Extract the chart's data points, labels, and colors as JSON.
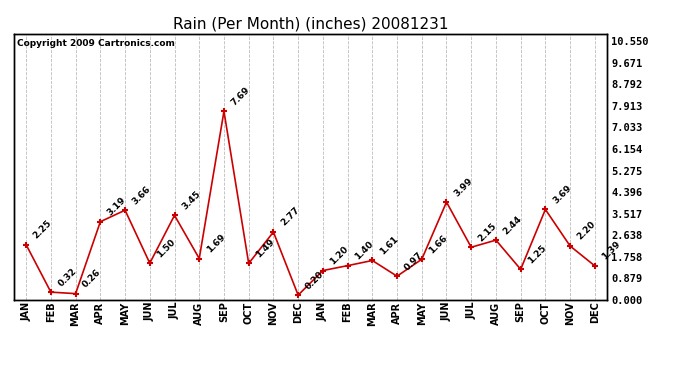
{
  "title": "Rain (Per Month) (inches) 20081231",
  "copyright": "Copyright 2009 Cartronics.com",
  "categories": [
    "JAN",
    "FEB",
    "MAR",
    "APR",
    "MAY",
    "JUN",
    "JUL",
    "AUG",
    "SEP",
    "OCT",
    "NOV",
    "DEC",
    "JAN",
    "FEB",
    "MAR",
    "APR",
    "MAY",
    "JUN",
    "JUL",
    "AUG",
    "SEP",
    "OCT",
    "NOV",
    "DEC"
  ],
  "values": [
    2.25,
    0.32,
    0.26,
    3.19,
    3.66,
    1.5,
    3.45,
    1.69,
    7.69,
    1.49,
    2.77,
    0.2,
    1.2,
    1.4,
    1.61,
    0.97,
    1.66,
    3.99,
    2.15,
    2.44,
    1.25,
    3.69,
    2.2,
    1.39
  ],
  "line_color": "#cc0000",
  "marker_color": "#cc0000",
  "bg_color": "#ffffff",
  "grid_color": "#bbbbbb",
  "title_fontsize": 11,
  "yticks": [
    0.0,
    0.879,
    1.758,
    2.638,
    3.517,
    4.396,
    5.275,
    6.154,
    7.033,
    7.913,
    8.792,
    9.671,
    10.55
  ],
  "ymax": 10.55,
  "ymin": 0.0,
  "annotation_rotation": 45,
  "annotation_fontsize": 6.5
}
